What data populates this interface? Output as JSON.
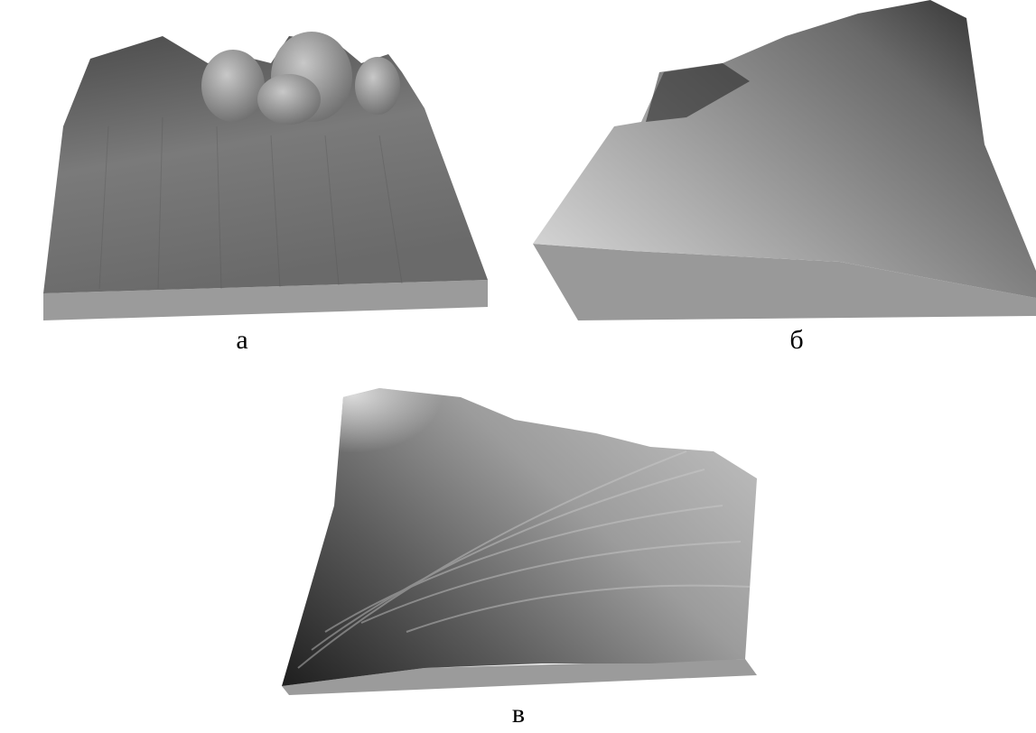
{
  "panels": [
    {
      "label": "а"
    },
    {
      "label": "б"
    },
    {
      "label": "в"
    }
  ]
}
